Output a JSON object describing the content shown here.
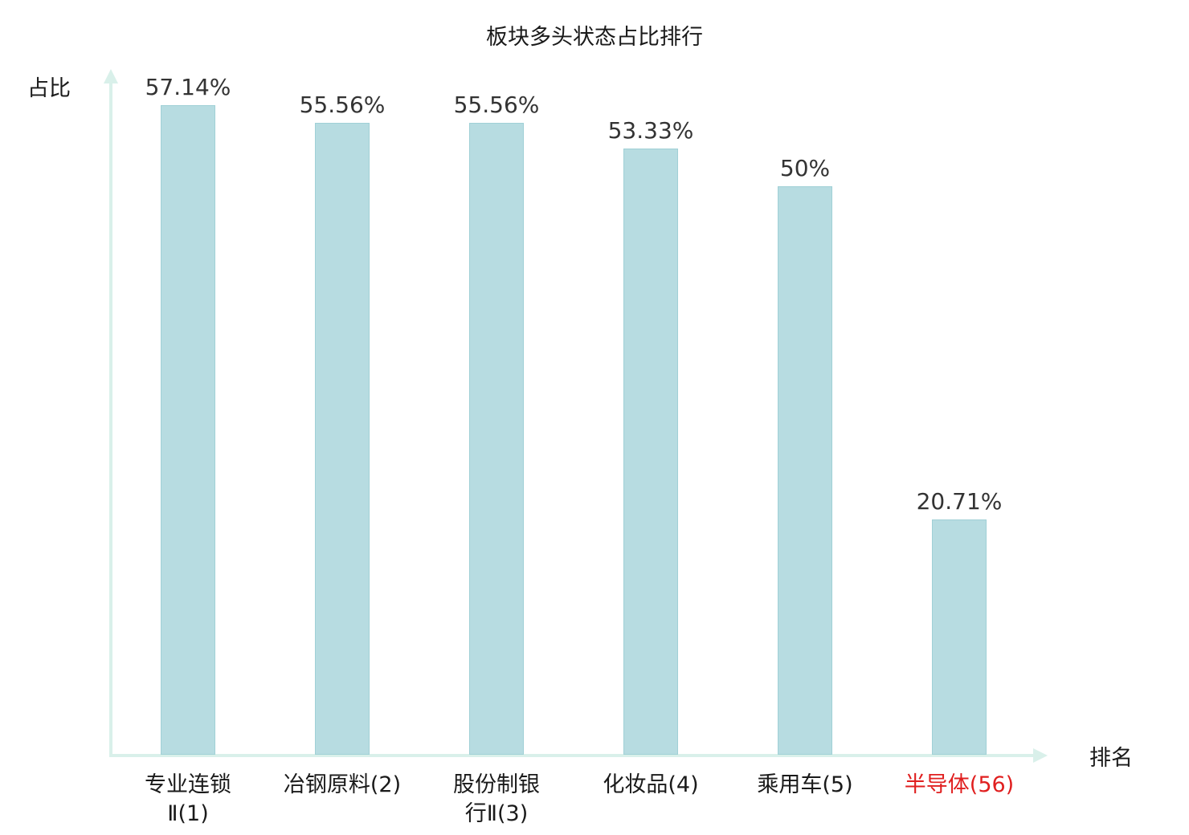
{
  "chart_data": {
    "type": "bar",
    "title": "板块多头状态占比排行",
    "ylabel": "占比",
    "xlabel": "排名",
    "categories": [
      "专业连锁\nⅡ(1)",
      "冶钢原料(2)",
      "股份制银\n行Ⅱ(3)",
      "化妆品(4)",
      "乘用车(5)",
      "半导体(56)"
    ],
    "values": [
      57.14,
      55.56,
      55.56,
      53.33,
      50,
      20.71
    ],
    "value_labels": [
      "57.14%",
      "55.56%",
      "55.56%",
      "53.33%",
      "50%",
      "20.71%"
    ],
    "highlight_index": 5,
    "ylim": [
      0,
      60
    ],
    "grid": false,
    "legend": false,
    "bar_color": "#b7dce1",
    "bar_border_color": "#a0d0d6",
    "axis_color": "#d9f0ea",
    "label_color": "#333333",
    "highlight_color": "#e01f1f"
  }
}
